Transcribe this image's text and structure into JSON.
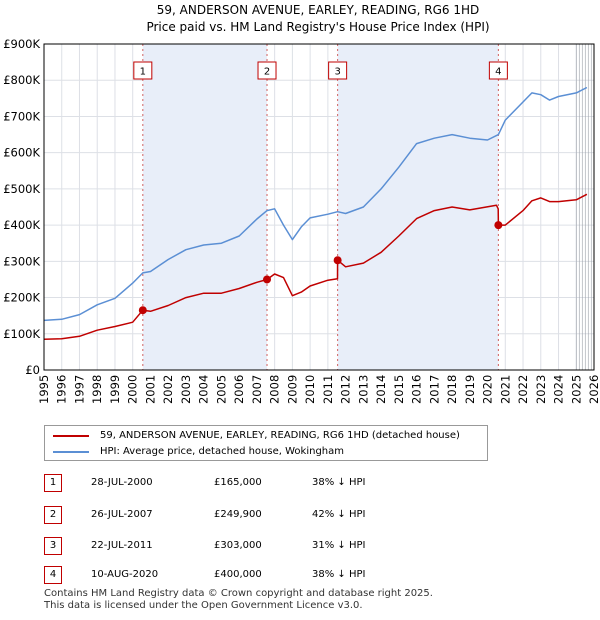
{
  "chart_data": {
    "type": "line",
    "title": "59, ANDERSON AVENUE, EARLEY, READING, RG6 1HD",
    "subtitle": "Price paid vs. HM Land Registry's House Price Index (HPI)",
    "xlabel": "",
    "ylabel": "",
    "xlim": [
      1995,
      2026
    ],
    "ylim": [
      0,
      900000
    ],
    "x_ticks": [
      "1995",
      "1996",
      "1997",
      "1998",
      "1999",
      "2000",
      "2001",
      "2002",
      "2003",
      "2004",
      "2005",
      "2006",
      "2007",
      "2008",
      "2009",
      "2010",
      "2011",
      "2012",
      "2013",
      "2014",
      "2015",
      "2016",
      "2017",
      "2018",
      "2019",
      "2020",
      "2021",
      "2022",
      "2023",
      "2024",
      "2025",
      "2026"
    ],
    "y_ticks": [
      {
        "value": 0,
        "label": "£0"
      },
      {
        "value": 100000,
        "label": "£100K"
      },
      {
        "value": 200000,
        "label": "£200K"
      },
      {
        "value": 300000,
        "label": "£300K"
      },
      {
        "value": 400000,
        "label": "£400K"
      },
      {
        "value": 500000,
        "label": "£500K"
      },
      {
        "value": 600000,
        "label": "£600K"
      },
      {
        "value": 700000,
        "label": "£700K"
      },
      {
        "value": 800000,
        "label": "£800K"
      },
      {
        "value": 900000,
        "label": "£900K"
      }
    ],
    "grid": true,
    "shaded_ranges": [
      [
        2000.57,
        2007.57
      ],
      [
        2011.55,
        2020.61
      ]
    ],
    "forecast_from": 2025.0,
    "series": [
      {
        "name": "59, ANDERSON AVENUE, EARLEY, READING, RG6 1HD (detached house)",
        "color": "#c00000",
        "x": [
          1995.0,
          1996.0,
          1997.0,
          1998.0,
          1999.0,
          2000.0,
          2000.57,
          2001.0,
          2002.0,
          2003.0,
          2004.0,
          2005.0,
          2006.0,
          2007.0,
          2007.57,
          2008.0,
          2008.5,
          2009.0,
          2009.5,
          2010.0,
          2011.0,
          2011.54,
          2011.55,
          2012.0,
          2013.0,
          2014.0,
          2015.0,
          2016.0,
          2017.0,
          2018.0,
          2019.0,
          2020.5,
          2020.6,
          2020.61,
          2021.0,
          2022.0,
          2022.5,
          2023.0,
          2023.5,
          2024.0,
          2025.0,
          2025.6
        ],
        "values": [
          85000,
          86000,
          93000,
          110000,
          120000,
          132000,
          165000,
          162000,
          178000,
          200000,
          212000,
          212000,
          225000,
          242000,
          249900,
          265000,
          255000,
          205000,
          215000,
          232000,
          248000,
          252000,
          303000,
          285000,
          295000,
          325000,
          370000,
          418000,
          440000,
          450000,
          442000,
          455000,
          445000,
          400000,
          400000,
          440000,
          467000,
          475000,
          465000,
          465000,
          470000,
          485000
        ]
      },
      {
        "name": "HPI: Average price, detached house, Wokingham",
        "color": "#5b8fd4",
        "x": [
          1995.0,
          1996.0,
          1997.0,
          1998.0,
          1999.0,
          2000.0,
          2000.57,
          2001.0,
          2002.0,
          2003.0,
          2004.0,
          2005.0,
          2006.0,
          2007.0,
          2007.57,
          2008.0,
          2008.5,
          2009.0,
          2009.5,
          2010.0,
          2011.0,
          2011.55,
          2012.0,
          2013.0,
          2014.0,
          2015.0,
          2016.0,
          2017.0,
          2018.0,
          2019.0,
          2020.0,
          2020.61,
          2021.0,
          2022.0,
          2022.5,
          2023.0,
          2023.5,
          2024.0,
          2025.0,
          2025.6
        ],
        "values": [
          137000,
          140000,
          153000,
          180000,
          198000,
          240000,
          268000,
          272000,
          305000,
          332000,
          345000,
          350000,
          370000,
          417000,
          440000,
          445000,
          400000,
          360000,
          395000,
          420000,
          430000,
          437000,
          432000,
          450000,
          500000,
          560000,
          625000,
          640000,
          650000,
          640000,
          635000,
          650000,
          690000,
          740000,
          765000,
          760000,
          745000,
          755000,
          765000,
          780000
        ]
      }
    ],
    "annotations": [
      {
        "label": "1",
        "x": 2000.57,
        "y": 165000
      },
      {
        "label": "2",
        "x": 2007.57,
        "y": 249900
      },
      {
        "label": "3",
        "x": 2011.55,
        "y": 303000
      },
      {
        "label": "4",
        "x": 2020.61,
        "y": 400000
      }
    ]
  },
  "legend": [
    {
      "label": "59, ANDERSON AVENUE, EARLEY, READING, RG6 1HD (detached house)",
      "color": "#c00000"
    },
    {
      "label": "HPI: Average price, detached house, Wokingham",
      "color": "#5b8fd4"
    }
  ],
  "transactions": [
    {
      "num": "1",
      "date": "28-JUL-2000",
      "price": "£165,000",
      "hpi": "38% ↓ HPI"
    },
    {
      "num": "2",
      "date": "26-JUL-2007",
      "price": "£249,900",
      "hpi": "42% ↓ HPI"
    },
    {
      "num": "3",
      "date": "22-JUL-2011",
      "price": "£303,000",
      "hpi": "31% ↓ HPI"
    },
    {
      "num": "4",
      "date": "10-AUG-2020",
      "price": "£400,000",
      "hpi": "38% ↓ HPI"
    }
  ],
  "footer": {
    "line1": "Contains HM Land Registry data © Crown copyright and database right 2025.",
    "line2": "This data is licensed under the Open Government Licence v3.0."
  }
}
